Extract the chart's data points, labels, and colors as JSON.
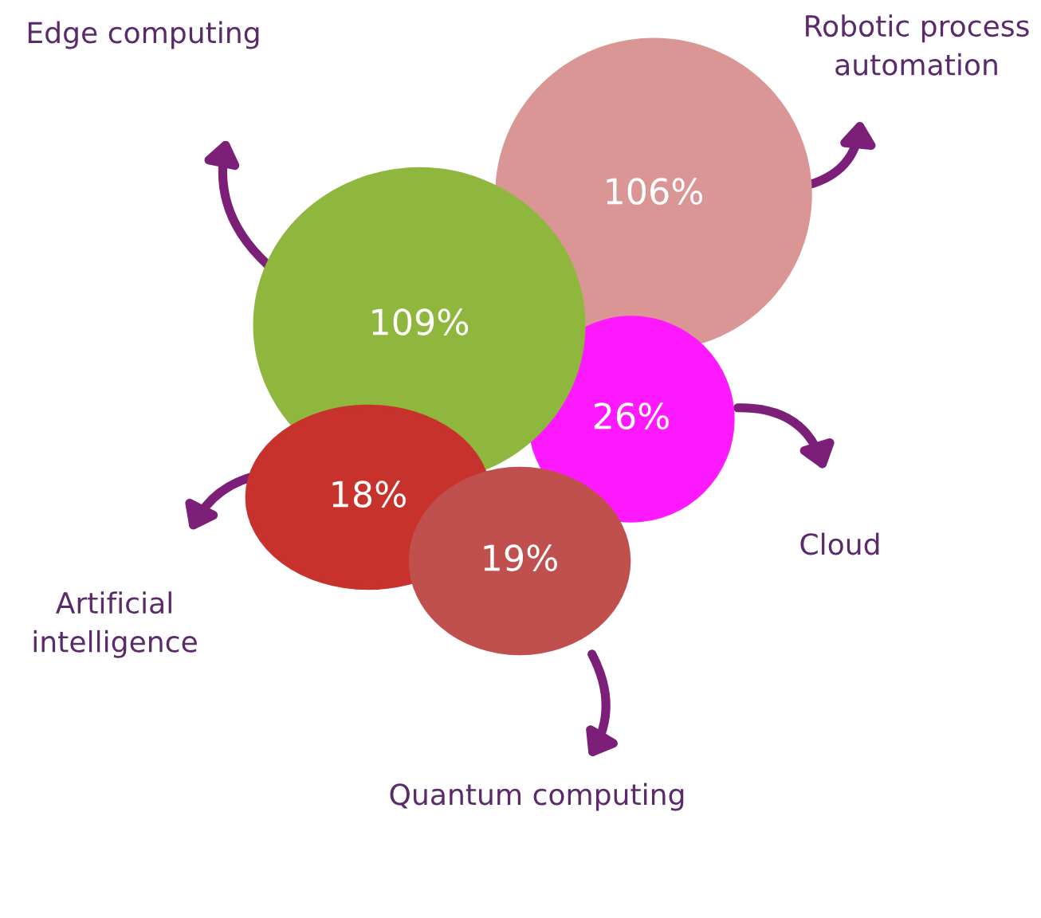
{
  "chart_data": {
    "type": "other",
    "categories": [
      "Robotic process\nautomation",
      "Cloud",
      "Edge computing",
      "Artificial\nintelligence",
      "Quantum computing"
    ],
    "values": [
      106,
      26,
      109,
      18,
      19
    ],
    "value_labels": [
      "106%",
      "26%",
      "109%",
      "18%",
      "19%"
    ],
    "colors": [
      "#d99694",
      "#ff19ff",
      "#8fb73e",
      "#c8322c",
      "#c0504d"
    ]
  }
}
